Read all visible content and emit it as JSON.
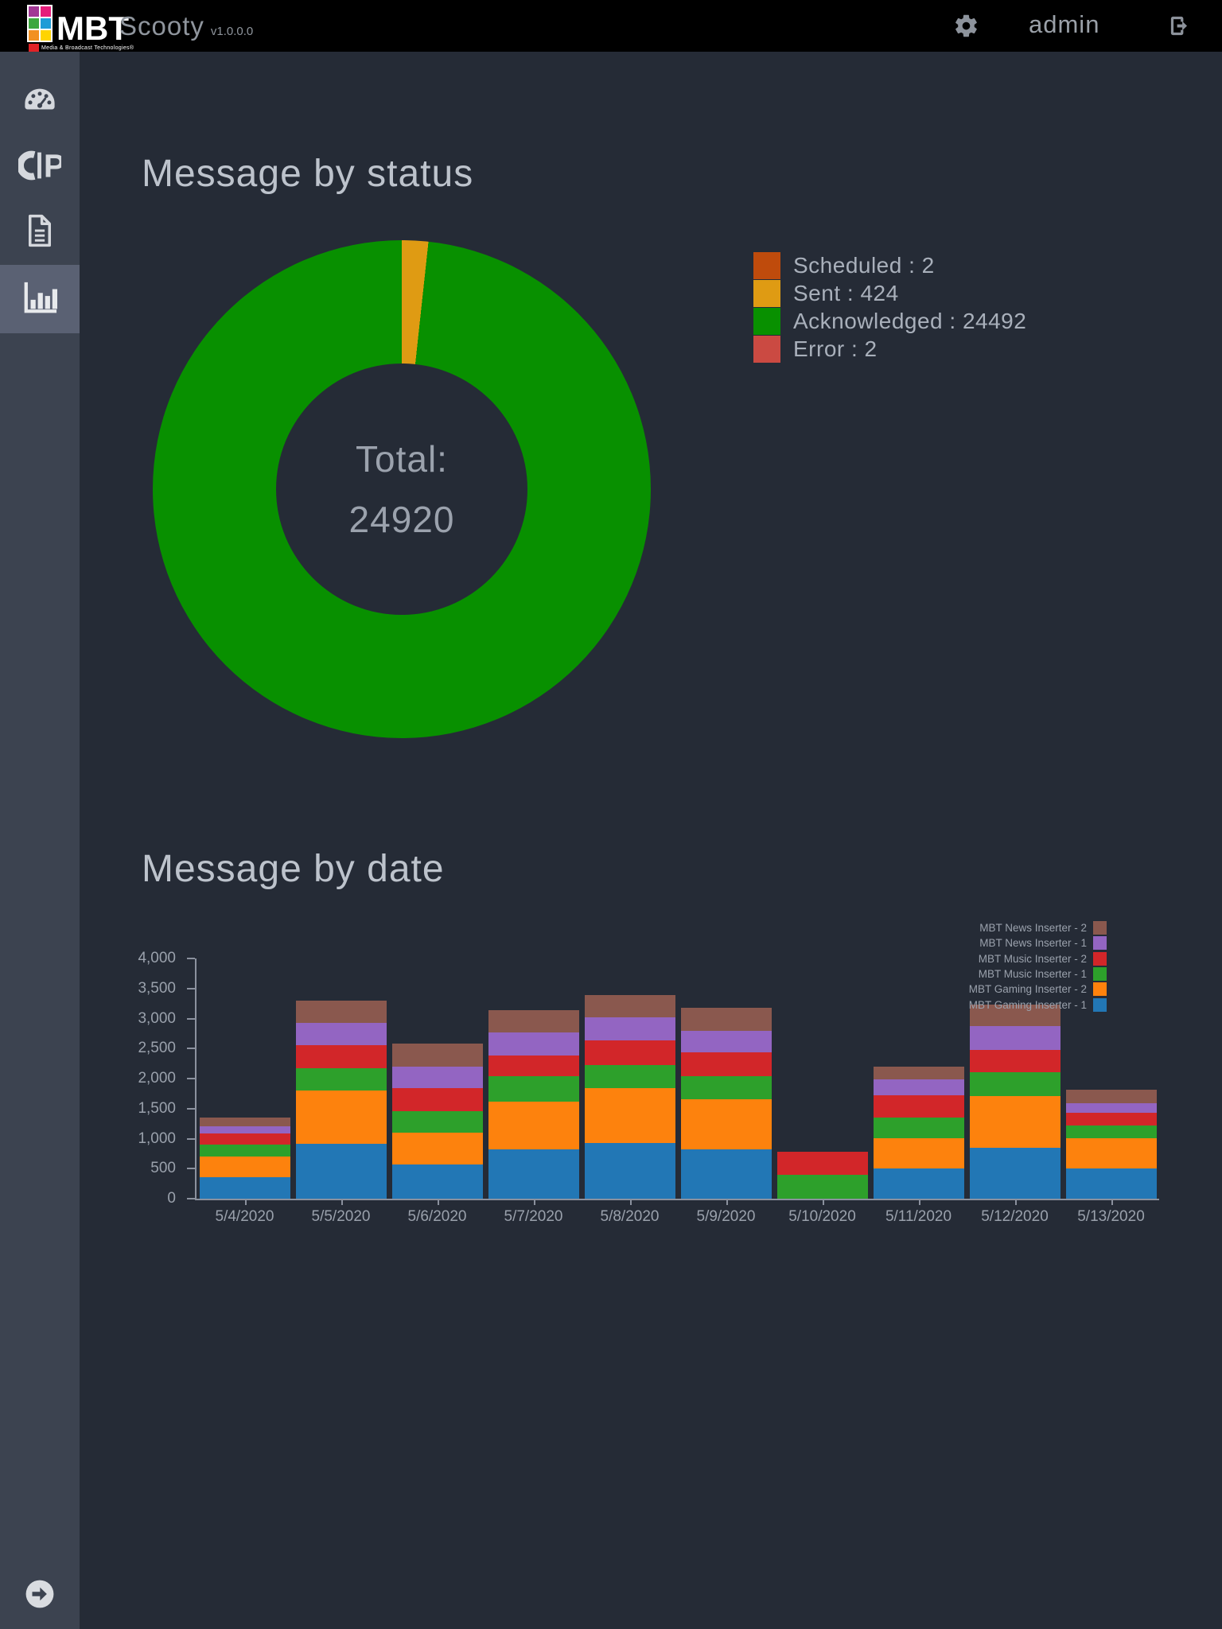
{
  "topbar": {
    "logo": {
      "text": "MBT",
      "tagline": "Media & Broadcast Technologies®"
    },
    "app_name": "Scooty",
    "app_version": "v1.0.0.0",
    "username": "admin"
  },
  "sidebar": {
    "items": [
      {
        "id": "dashboard",
        "icon": "gauge-icon",
        "selected": false
      },
      {
        "id": "cp-module",
        "icon": "cp-icon",
        "selected": false
      },
      {
        "id": "documents",
        "icon": "document-icon",
        "selected": false
      },
      {
        "id": "statistics",
        "icon": "bar-chart-icon",
        "selected": true
      }
    ],
    "bottom_icon": "circle-arrow-right-icon"
  },
  "chart_data": [
    {
      "type": "pie",
      "title": "Message by status",
      "labels": [
        "Scheduled",
        "Sent",
        "Acknowledged",
        "Error"
      ],
      "values": [
        2,
        424,
        24492,
        2
      ],
      "colors": [
        "#bf4b0c",
        "#df9b13",
        "#089000",
        "#cb4a42"
      ],
      "donut_hole_ratio": 0.5,
      "center_label": "Total:",
      "center_value": "24920",
      "legend_position": "right",
      "legend_format": "label : value"
    },
    {
      "type": "bar",
      "stacked": true,
      "title": "Message by date",
      "categories": [
        "5/4/2020",
        "5/5/2020",
        "5/6/2020",
        "5/7/2020",
        "5/8/2020",
        "5/9/2020",
        "5/10/2020",
        "5/11/2020",
        "5/12/2020",
        "5/13/2020"
      ],
      "series": [
        {
          "name": "MBT Gaming Inserter - 1",
          "color": "#2277b5",
          "values": [
            360,
            910,
            570,
            820,
            930,
            820,
            0,
            500,
            850,
            500
          ]
        },
        {
          "name": "MBT Gaming Inserter - 2",
          "color": "#fd820d",
          "values": [
            340,
            890,
            530,
            795,
            915,
            835,
            0,
            505,
            860,
            505
          ]
        },
        {
          "name": "MBT Music Inserter - 1",
          "color": "#2da02b",
          "values": [
            200,
            370,
            360,
            420,
            385,
            385,
            400,
            345,
            395,
            210
          ]
        },
        {
          "name": "MBT Music Inserter - 2",
          "color": "#d22629",
          "values": [
            190,
            385,
            385,
            350,
            410,
            400,
            380,
            370,
            370,
            210
          ]
        },
        {
          "name": "MBT News Inserter - 1",
          "color": "#9365c2",
          "values": [
            110,
            375,
            355,
            385,
            375,
            355,
            0,
            265,
            400,
            160
          ]
        },
        {
          "name": "MBT News Inserter - 2",
          "color": "#8a584e",
          "values": [
            150,
            370,
            385,
            370,
            370,
            385,
            0,
            210,
            355,
            225
          ]
        }
      ],
      "ylim": [
        0,
        4000
      ],
      "ytick_labels": [
        "0",
        "500",
        "1,000",
        "1,500",
        "2,000",
        "2,500",
        "3,000",
        "3,500",
        "4,000"
      ],
      "grid": false,
      "legend_position": "top-right",
      "legend_order_top_to_bottom": [
        "MBT News Inserter - 2",
        "MBT News Inserter - 1",
        "MBT Music Inserter - 2",
        "MBT Music Inserter - 1",
        "MBT Gaming Inserter - 2",
        "MBT Gaming Inserter - 1"
      ]
    }
  ],
  "colors": {
    "topbar_bg": "#000000",
    "sidebar_bg": "#3c4350",
    "sidebar_selected_bg": "#5a6173",
    "main_bg": "#252b36",
    "title_text": "#bdc3cc",
    "legend_text": "#a9b0bb",
    "axis_text": "#9aa1ac",
    "axis_line": "#8b919e",
    "icon_gray": "#d5d8dd"
  }
}
